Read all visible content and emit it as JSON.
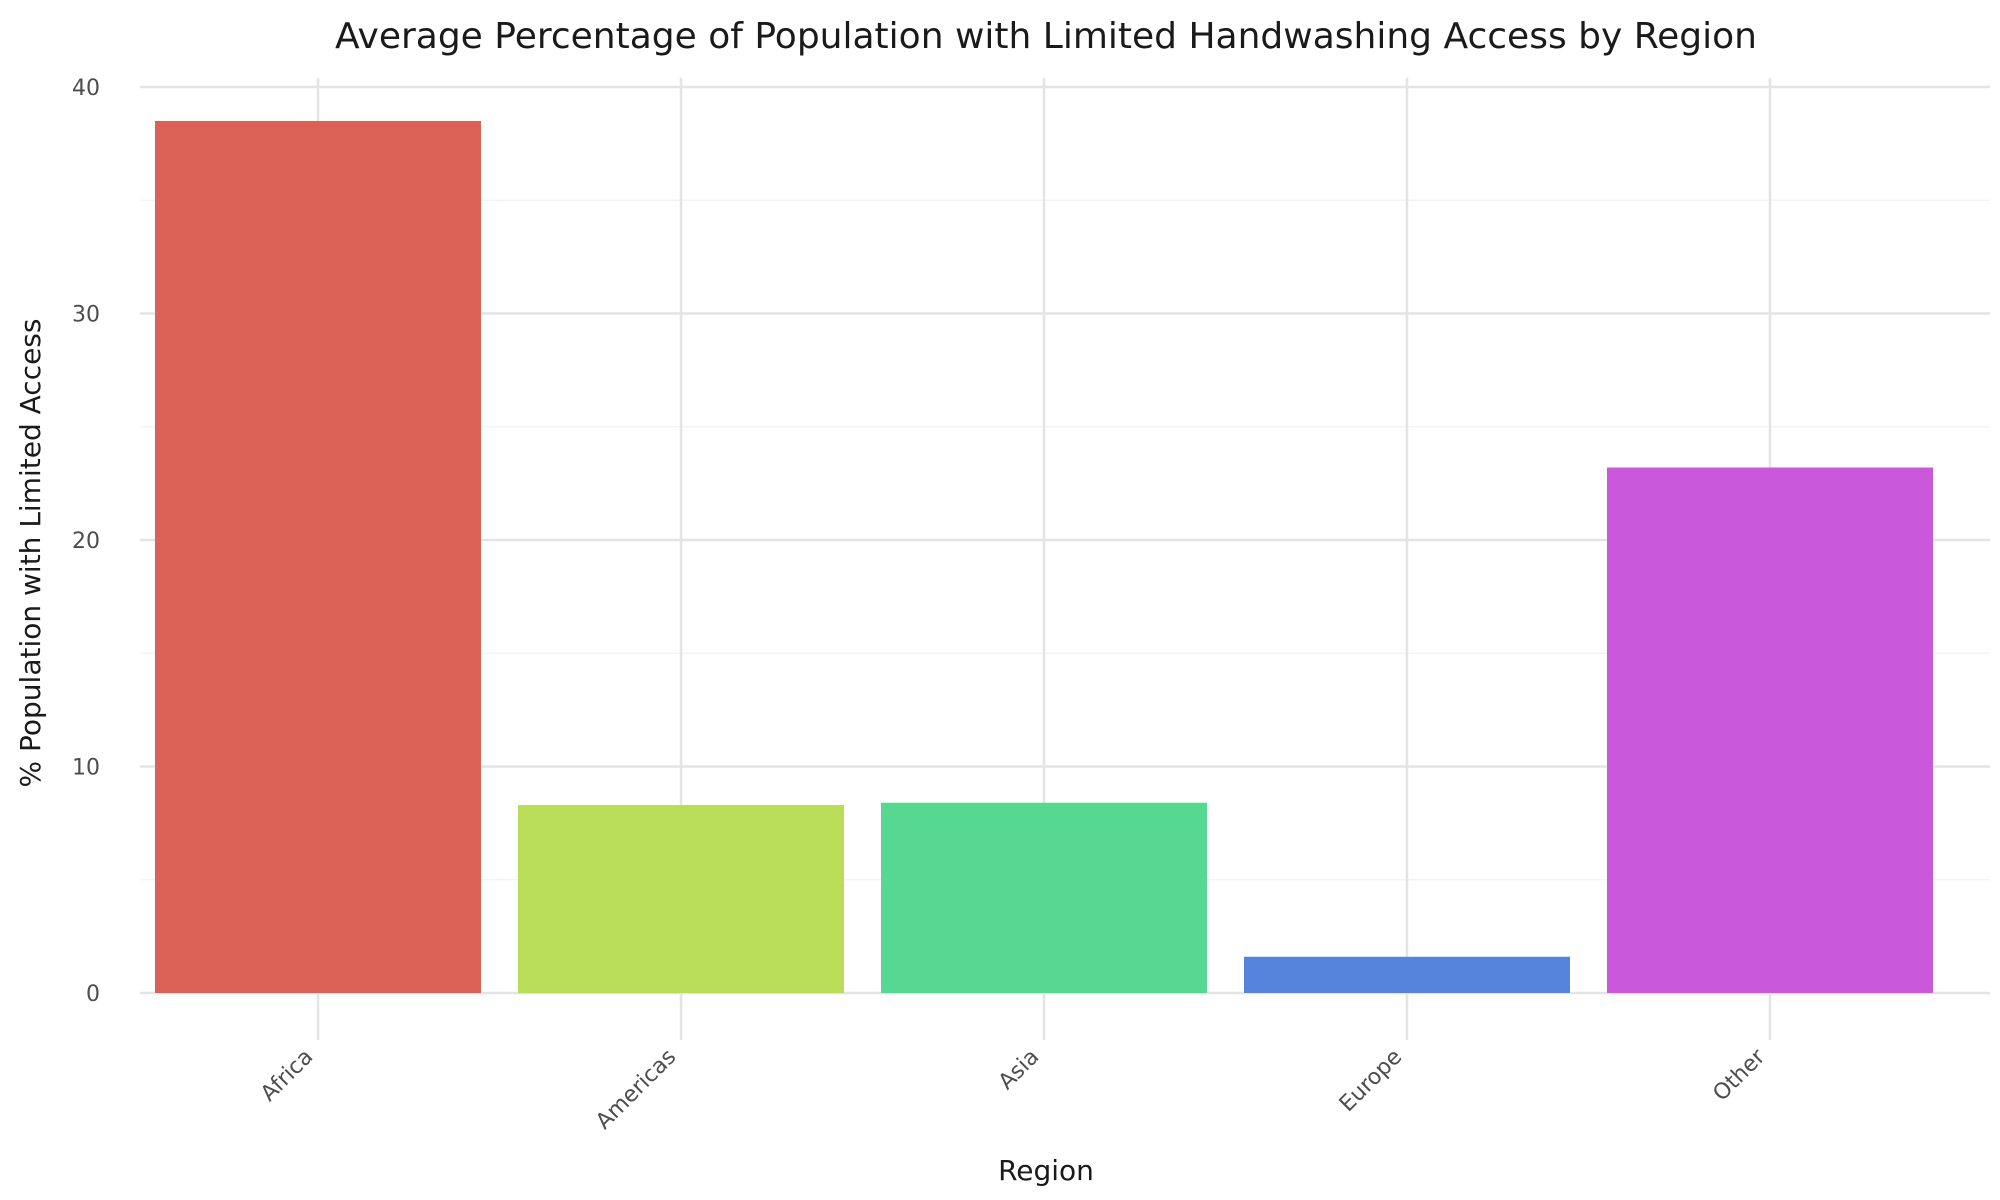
{
  "chart_data": {
    "type": "bar",
    "title": "Average Percentage of Population with Limited Handwashing Access by Region",
    "xlabel": "Region",
    "ylabel": "% Population with Limited Access",
    "categories": [
      "Africa",
      "Americas",
      "Asia",
      "Europe",
      "Other"
    ],
    "values": [
      38.5,
      8.3,
      8.4,
      1.6,
      23.2
    ],
    "colors": [
      "#DB6056",
      "#BADD59",
      "#56D891",
      "#5683DB",
      "#C958DB"
    ],
    "ylim": [
      0,
      40
    ],
    "yticks": [
      0,
      10,
      20,
      30,
      40
    ],
    "grid": true,
    "legend": "none"
  }
}
